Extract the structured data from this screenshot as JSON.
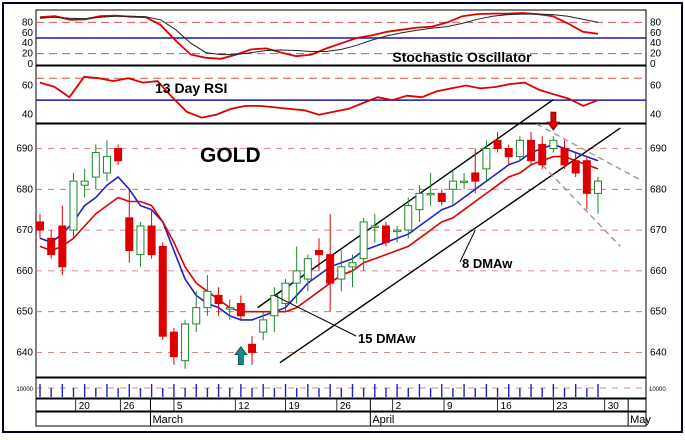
{
  "chart_data": [
    {
      "type": "line",
      "panel": "stochastic",
      "annotation": "Stochastic Oscillator",
      "y_ticks": [
        80,
        60,
        40,
        20,
        0
      ],
      "ylim": [
        0,
        100
      ],
      "reference_levels": [
        80,
        20
      ],
      "signal_level": 50,
      "series": [
        {
          "color": "#e00000",
          "values": [
            90,
            92,
            85,
            86,
            92,
            93,
            91,
            90,
            75,
            45,
            18,
            12,
            10,
            18,
            28,
            30,
            22,
            15,
            18,
            30,
            40,
            50,
            55,
            62,
            66,
            70,
            72,
            80,
            92,
            96,
            97,
            97,
            98,
            96,
            92,
            78,
            62,
            58
          ]
        },
        {
          "color": "#222222",
          "values": [
            88,
            90,
            88,
            87,
            90,
            92,
            92,
            91,
            85,
            66,
            40,
            22,
            18,
            18,
            22,
            26,
            27,
            26,
            24,
            24,
            28,
            36,
            46,
            54,
            60,
            65,
            69,
            72,
            78,
            86,
            92,
            95,
            96,
            96,
            95,
            92,
            86,
            80
          ]
        }
      ]
    },
    {
      "type": "line",
      "panel": "rsi",
      "annotation": "13 Day RSI",
      "y_ticks": [
        60,
        40
      ],
      "ylim": [
        35,
        72
      ],
      "reference_levels": [
        65
      ],
      "signal_level": 50,
      "series": [
        {
          "color": "#e00000",
          "values": [
            62,
            59,
            52,
            66,
            65,
            63,
            65,
            62,
            63,
            52,
            42,
            38,
            40,
            44,
            46,
            46,
            45,
            44,
            43,
            40,
            42,
            44,
            48,
            52,
            50,
            53,
            52,
            56,
            58,
            60,
            58,
            59,
            61,
            62,
            57,
            54,
            51,
            46,
            50
          ]
        }
      ]
    },
    {
      "type": "candlestick",
      "panel": "price",
      "title": "GOLD",
      "x_ticks": [
        "20",
        "26",
        "5",
        "12",
        "19",
        "26",
        "2",
        "9",
        "16",
        "23",
        "30"
      ],
      "month_labels": [
        "March",
        "April",
        "May"
      ],
      "y_ticks": [
        690,
        680,
        670,
        660,
        650,
        640
      ],
      "ylim": [
        634,
        696
      ],
      "candles": [
        {
          "o": 672,
          "h": 674,
          "l": 668,
          "c": 670
        },
        {
          "o": 668,
          "h": 670,
          "l": 663,
          "c": 664
        },
        {
          "o": 671,
          "h": 676,
          "l": 659,
          "c": 661
        },
        {
          "o": 670,
          "h": 684,
          "l": 668,
          "c": 682
        },
        {
          "o": 681,
          "h": 685,
          "l": 678,
          "c": 682
        },
        {
          "o": 683,
          "h": 691,
          "l": 680,
          "c": 689
        },
        {
          "o": 684,
          "h": 692,
          "l": 682,
          "c": 688
        },
        {
          "o": 690,
          "h": 691,
          "l": 686,
          "c": 687
        },
        {
          "o": 673,
          "h": 680,
          "l": 662,
          "c": 665
        },
        {
          "o": 664,
          "h": 672,
          "l": 661,
          "c": 671
        },
        {
          "o": 671,
          "h": 675,
          "l": 663,
          "c": 664
        },
        {
          "o": 666,
          "h": 667,
          "l": 643,
          "c": 644
        },
        {
          "o": 645,
          "h": 646,
          "l": 637,
          "c": 639
        },
        {
          "o": 638,
          "h": 648,
          "l": 636,
          "c": 647
        },
        {
          "o": 647,
          "h": 655,
          "l": 645,
          "c": 651
        },
        {
          "o": 651,
          "h": 659,
          "l": 649,
          "c": 655
        },
        {
          "o": 654,
          "h": 656,
          "l": 649,
          "c": 652
        },
        {
          "o": 651,
          "h": 653,
          "l": 648,
          "c": 651
        },
        {
          "o": 652,
          "h": 654,
          "l": 648,
          "c": 649
        },
        {
          "o": 642,
          "h": 644,
          "l": 637,
          "c": 640
        },
        {
          "o": 645,
          "h": 650,
          "l": 643,
          "c": 648
        },
        {
          "o": 649,
          "h": 656,
          "l": 645,
          "c": 654
        },
        {
          "o": 652,
          "h": 658,
          "l": 650,
          "c": 657
        },
        {
          "o": 657,
          "h": 666,
          "l": 652,
          "c": 660
        },
        {
          "o": 658,
          "h": 664,
          "l": 655,
          "c": 663
        },
        {
          "o": 665,
          "h": 668,
          "l": 660,
          "c": 664
        },
        {
          "o": 664,
          "h": 674,
          "l": 650,
          "c": 657
        },
        {
          "o": 658,
          "h": 665,
          "l": 655,
          "c": 661
        },
        {
          "o": 661,
          "h": 664,
          "l": 656,
          "c": 662
        },
        {
          "o": 663,
          "h": 673,
          "l": 660,
          "c": 672
        },
        {
          "o": 671,
          "h": 674,
          "l": 667,
          "c": 671
        },
        {
          "o": 671,
          "h": 672,
          "l": 666,
          "c": 667
        },
        {
          "o": 670,
          "h": 671,
          "l": 667,
          "c": 670
        },
        {
          "o": 670,
          "h": 678,
          "l": 668,
          "c": 676
        },
        {
          "o": 675,
          "h": 681,
          "l": 672,
          "c": 679
        },
        {
          "o": 679,
          "h": 684,
          "l": 676,
          "c": 679
        },
        {
          "o": 679,
          "h": 680,
          "l": 676,
          "c": 677
        },
        {
          "o": 680,
          "h": 685,
          "l": 676,
          "c": 682
        },
        {
          "o": 682,
          "h": 684,
          "l": 680,
          "c": 682
        },
        {
          "o": 684,
          "h": 690,
          "l": 679,
          "c": 682
        },
        {
          "o": 685,
          "h": 692,
          "l": 682,
          "c": 690
        },
        {
          "o": 692,
          "h": 694,
          "l": 689,
          "c": 690
        },
        {
          "o": 690,
          "h": 691,
          "l": 686,
          "c": 688
        },
        {
          "o": 688,
          "h": 693,
          "l": 687,
          "c": 692
        },
        {
          "o": 692,
          "h": 694,
          "l": 686,
          "c": 687
        },
        {
          "o": 691,
          "h": 693,
          "l": 685,
          "c": 686
        },
        {
          "o": 690,
          "h": 693,
          "l": 689,
          "c": 692
        },
        {
          "o": 690,
          "h": 692,
          "l": 685,
          "c": 686
        },
        {
          "o": 687,
          "h": 689,
          "l": 683,
          "c": 684
        },
        {
          "o": 687,
          "h": 688,
          "l": 675,
          "c": 679
        },
        {
          "o": 679,
          "h": 683,
          "l": 674,
          "c": 682
        }
      ],
      "lines": [
        {
          "label": "8 DMAw",
          "color": "#2020d0",
          "values": [
            668,
            667,
            669,
            672,
            676,
            678,
            681,
            683,
            680,
            676,
            675,
            672,
            665,
            658,
            654,
            652,
            651,
            649,
            648,
            648,
            649,
            650,
            651,
            654,
            657,
            659,
            661,
            662,
            663,
            665,
            666,
            667,
            668,
            669,
            671,
            673,
            675,
            676,
            678,
            680,
            682,
            684,
            686,
            687,
            689,
            690,
            691,
            690,
            689,
            688,
            687
          ]
        },
        {
          "label": "15 DMAw",
          "color": "#e00000",
          "values": [
            666,
            665,
            666,
            668,
            671,
            674,
            676,
            678,
            677,
            677,
            676,
            672,
            667,
            661,
            657,
            655,
            653,
            651,
            650,
            650,
            650,
            650,
            650,
            651,
            653,
            655,
            657,
            659,
            660,
            662,
            663,
            664,
            665,
            666,
            668,
            670,
            672,
            673,
            675,
            677,
            679,
            681,
            683,
            684,
            686,
            687,
            688,
            688,
            687,
            686,
            685
          ]
        }
      ],
      "channel_color": "#000000",
      "forecast_channel_color": "#999999",
      "annotations": [
        {
          "text": "8 DMAw"
        },
        {
          "text": "15 DMAw"
        }
      ],
      "arrow_up_color": "#138a85",
      "arrow_down_color": "#e00000"
    },
    {
      "type": "bar",
      "panel": "volume",
      "y_ticks": [
        "10000"
      ],
      "values": [
        1,
        0,
        1,
        0,
        1,
        0,
        1,
        0,
        1,
        0,
        1,
        0,
        1,
        0,
        1,
        0,
        1,
        0,
        1,
        0,
        1,
        0,
        1,
        0,
        1,
        0,
        1,
        0,
        1,
        0,
        1,
        0,
        1,
        0,
        1,
        0,
        1,
        0,
        1,
        0,
        1,
        0,
        1,
        0,
        1,
        0,
        1,
        0,
        1,
        0,
        1
      ]
    }
  ]
}
